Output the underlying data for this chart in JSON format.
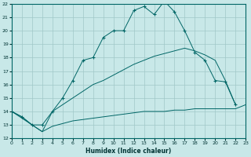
{
  "bg_color": "#c8e8e8",
  "grid_color": "#a0c8c8",
  "line_color": "#006666",
  "xlabel": "Humidex (Indice chaleur)",
  "xlim": [
    0,
    23
  ],
  "ylim": [
    12,
    22
  ],
  "xticks": [
    0,
    1,
    2,
    3,
    4,
    5,
    6,
    7,
    8,
    9,
    10,
    11,
    12,
    13,
    14,
    15,
    16,
    17,
    18,
    19,
    20,
    21,
    22,
    23
  ],
  "yticks": [
    12,
    13,
    14,
    15,
    16,
    17,
    18,
    19,
    20,
    21,
    22
  ],
  "curve_top_x": [
    0,
    1,
    2,
    3,
    4,
    5,
    6,
    7,
    8,
    9,
    10,
    11,
    12,
    13,
    14,
    15,
    16,
    17,
    18,
    19,
    20,
    21,
    22
  ],
  "curve_top_y": [
    14.0,
    13.6,
    13.0,
    13.0,
    14.0,
    15.0,
    16.3,
    17.8,
    18.0,
    19.5,
    20.0,
    20.0,
    21.5,
    21.8,
    21.2,
    22.2,
    21.4,
    20.0,
    18.4,
    17.8,
    16.3,
    16.2,
    14.5
  ],
  "curve_mid_x": [
    0,
    2,
    3,
    4,
    5,
    6,
    7,
    8,
    9,
    10,
    11,
    12,
    13,
    14,
    15,
    16,
    17,
    18,
    19,
    20,
    21,
    22
  ],
  "curve_mid_y": [
    14.0,
    13.0,
    12.5,
    14.0,
    14.5,
    15.0,
    15.5,
    16.0,
    16.3,
    16.7,
    17.1,
    17.5,
    17.8,
    18.1,
    18.3,
    18.5,
    18.7,
    18.5,
    18.2,
    17.8,
    16.3,
    14.5
  ],
  "curve_bot_x": [
    0,
    1,
    2,
    3,
    4,
    5,
    6,
    7,
    8,
    9,
    10,
    11,
    12,
    13,
    14,
    15,
    16,
    17,
    18,
    19,
    20,
    21,
    22,
    23
  ],
  "curve_bot_y": [
    14.0,
    13.6,
    13.0,
    12.5,
    12.9,
    13.1,
    13.3,
    13.4,
    13.5,
    13.6,
    13.7,
    13.8,
    13.9,
    14.0,
    14.0,
    14.0,
    14.1,
    14.1,
    14.2,
    14.2,
    14.2,
    14.2,
    14.2,
    14.5
  ]
}
